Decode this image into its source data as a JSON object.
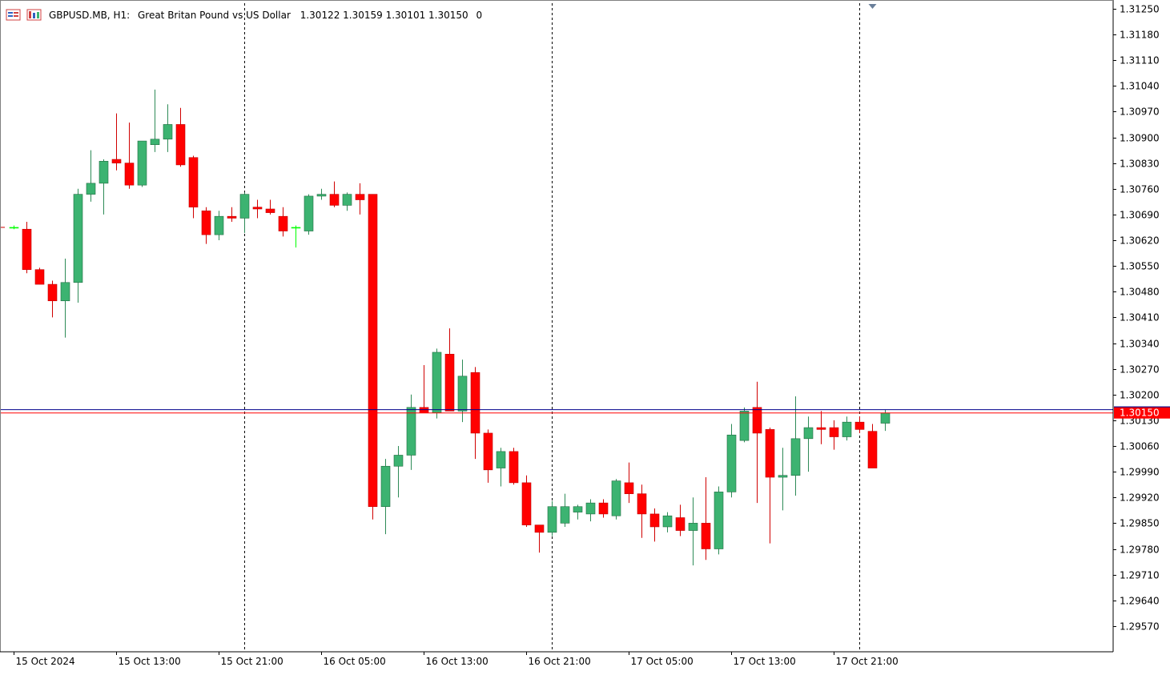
{
  "header": {
    "symbol": "GBPUSD.MB, H1:",
    "description": "Great Britan Pound vs US Dollar",
    "ohlc": "1.30122 1.30159 1.30101 1.30150",
    "volume": "0",
    "icons": [
      "chart-list-icon",
      "chart-properties-icon"
    ]
  },
  "chart_data": {
    "type": "candlestick",
    "symbol": "GBPUSD.MB",
    "timeframe": "H1",
    "colors": {
      "bull": "#3cb371",
      "bear": "#ff0000",
      "bid_line": "#ff0000",
      "ask_line": "#00008b",
      "grid": "#000000",
      "doji": "#00ff00"
    },
    "y_range": [
      1.295,
      1.31265
    ],
    "y_ticks": [
      "1.31250",
      "1.31180",
      "1.31110",
      "1.31040",
      "1.30970",
      "1.30900",
      "1.30830",
      "1.30760",
      "1.30690",
      "1.30620",
      "1.30550",
      "1.30480",
      "1.30410",
      "1.30340",
      "1.30270",
      "1.30200",
      "1.30130",
      "1.30060",
      "1.29990",
      "1.29920",
      "1.29850",
      "1.29780",
      "1.29710",
      "1.29640",
      "1.29570"
    ],
    "x_labels": [
      {
        "index": 0,
        "text": "15 Oct 2024"
      },
      {
        "index": 8,
        "text": "15 Oct 13:00"
      },
      {
        "index": 16,
        "text": "15 Oct 21:00"
      },
      {
        "index": 24,
        "text": "16 Oct 05:00"
      },
      {
        "index": 32,
        "text": "16 Oct 13:00"
      },
      {
        "index": 40,
        "text": "16 Oct 21:00"
      },
      {
        "index": 48,
        "text": "17 Oct 05:00"
      },
      {
        "index": 56,
        "text": "17 Oct 13:00"
      },
      {
        "index": 64,
        "text": "17 Oct 21:00"
      }
    ],
    "period_separators": [
      18,
      42,
      66
    ],
    "first_candle_index": -1,
    "current_price": "1.30150",
    "bid": 1.3015,
    "ask": 1.30159,
    "candles": [
      [
        1.30655,
        1.3066,
        1.3065,
        1.30655
      ],
      [
        1.3065,
        1.3067,
        1.3053,
        1.3054
      ],
      [
        1.3054,
        1.30545,
        1.305,
        1.305
      ],
      [
        1.305,
        1.3051,
        1.3041,
        1.30455
      ],
      [
        1.30455,
        1.3057,
        1.30355,
        1.30505
      ],
      [
        1.30505,
        1.3076,
        1.3045,
        1.30745
      ],
      [
        1.30745,
        1.30865,
        1.30725,
        1.30775
      ],
      [
        1.30775,
        1.3084,
        1.3069,
        1.30835
      ],
      [
        1.3084,
        1.30965,
        1.3081,
        1.3083
      ],
      [
        1.3083,
        1.3094,
        1.3076,
        1.3077
      ],
      [
        1.3077,
        1.30885,
        1.30765,
        1.3089
      ],
      [
        1.3088,
        1.3103,
        1.3086,
        1.30895
      ],
      [
        1.30895,
        1.3099,
        1.3086,
        1.30935
      ],
      [
        1.30935,
        1.3098,
        1.3082,
        1.30825
      ],
      [
        1.30845,
        1.3085,
        1.3068,
        1.3071
      ],
      [
        1.307,
        1.3071,
        1.3061,
        1.30635
      ],
      [
        1.30635,
        1.307,
        1.3062,
        1.30685
      ],
      [
        1.30685,
        1.3071,
        1.3067,
        1.3068
      ],
      [
        1.3068,
        1.3075,
        1.3064,
        1.30745
      ],
      [
        1.3071,
        1.3073,
        1.3068,
        1.30705
      ],
      [
        1.30705,
        1.3073,
        1.3069,
        1.30695
      ],
      [
        1.30685,
        1.3071,
        1.3063,
        1.30645
      ],
      [
        1.30655,
        1.3066,
        1.306,
        1.30655
      ],
      [
        1.30645,
        1.30745,
        1.30635,
        1.3074
      ],
      [
        1.3074,
        1.3076,
        1.3073,
        1.30745
      ],
      [
        1.30745,
        1.3078,
        1.3071,
        1.30715
      ],
      [
        1.30715,
        1.3075,
        1.307,
        1.30745
      ],
      [
        1.30745,
        1.30775,
        1.3069,
        1.3073
      ],
      [
        1.30745,
        1.30745,
        1.2986,
        1.29895
      ],
      [
        1.29895,
        1.30025,
        1.2982,
        1.30005
      ],
      [
        1.30005,
        1.3006,
        1.2992,
        1.30035
      ],
      [
        1.30035,
        1.302,
        1.29995,
        1.30165
      ],
      [
        1.30165,
        1.3028,
        1.3015,
        1.3015
      ],
      [
        1.3015,
        1.30325,
        1.30135,
        1.30315
      ],
      [
        1.3031,
        1.3038,
        1.3017,
        1.30155
      ],
      [
        1.30155,
        1.30295,
        1.30125,
        1.3025
      ],
      [
        1.3026,
        1.30275,
        1.30025,
        1.30095
      ],
      [
        1.30095,
        1.30105,
        1.2996,
        1.29995
      ],
      [
        1.3,
        1.30055,
        1.2995,
        1.30045
      ],
      [
        1.30045,
        1.30055,
        1.29955,
        1.2996
      ],
      [
        1.2996,
        1.2998,
        1.2984,
        1.29845
      ],
      [
        1.29845,
        1.29845,
        1.2977,
        1.29825
      ],
      [
        1.29825,
        1.2991,
        1.29815,
        1.29895
      ],
      [
        1.2985,
        1.2993,
        1.2984,
        1.29895
      ],
      [
        1.2988,
        1.299,
        1.2986,
        1.29895
      ],
      [
        1.29875,
        1.29915,
        1.29855,
        1.29905
      ],
      [
        1.29905,
        1.29915,
        1.29865,
        1.29875
      ],
      [
        1.2987,
        1.2997,
        1.2986,
        1.29965
      ],
      [
        1.2996,
        1.30015,
        1.29905,
        1.2993
      ],
      [
        1.2993,
        1.29955,
        1.2981,
        1.29875
      ],
      [
        1.29875,
        1.2989,
        1.298,
        1.2984
      ],
      [
        1.2984,
        1.2988,
        1.29825,
        1.2987
      ],
      [
        1.29865,
        1.299,
        1.29815,
        1.2983
      ],
      [
        1.2983,
        1.2992,
        1.29735,
        1.2985
      ],
      [
        1.2985,
        1.29975,
        1.2975,
        1.2978
      ],
      [
        1.2978,
        1.2995,
        1.29765,
        1.29935
      ],
      [
        1.29935,
        1.3012,
        1.2992,
        1.3009
      ],
      [
        1.30075,
        1.30165,
        1.3007,
        1.30155
      ],
      [
        1.30165,
        1.30235,
        1.29905,
        1.30095
      ],
      [
        1.30105,
        1.3011,
        1.29795,
        1.29975
      ],
      [
        1.29975,
        1.30055,
        1.29885,
        1.2998
      ],
      [
        1.2998,
        1.30195,
        1.29925,
        1.3008
      ],
      [
        1.3008,
        1.3014,
        1.2999,
        1.3011
      ],
      [
        1.3011,
        1.30155,
        1.30065,
        1.30105
      ],
      [
        1.3011,
        1.3013,
        1.3005,
        1.30085
      ],
      [
        1.30085,
        1.3014,
        1.30075,
        1.30125
      ],
      [
        1.30125,
        1.3014,
        1.30095,
        1.30105
      ],
      [
        1.301,
        1.3012,
        1.3,
        1.3
      ],
      [
        1.30122,
        1.30159,
        1.30101,
        1.3015
      ]
    ]
  }
}
